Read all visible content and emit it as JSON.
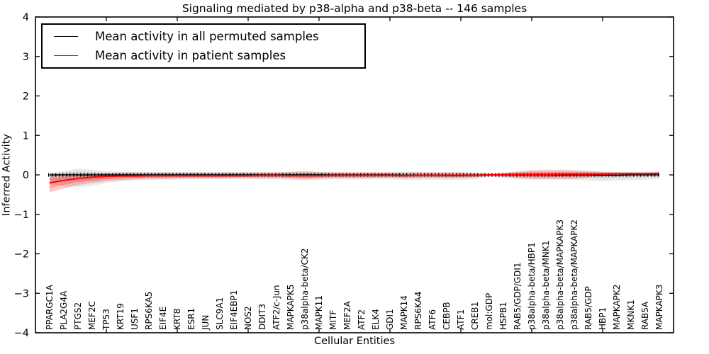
{
  "figure": {
    "background": "#ffffff"
  },
  "chart_data": {
    "type": "line",
    "title": "Signaling mediated by p38-alpha and p38-beta -- 146 samples",
    "xlabel": "Cellular Entities",
    "ylabel": "Inferred Activity",
    "ylim": [
      -4,
      4
    ],
    "xlim": [
      0,
      45
    ],
    "y_ticks": [
      -4,
      -3,
      -2,
      -1,
      0,
      1,
      2,
      3,
      4
    ],
    "x_major_tick_positions": [
      5,
      10,
      15,
      20,
      25,
      30,
      35,
      40
    ],
    "grid": false,
    "legend": {
      "position": "upper left",
      "entries": [
        {
          "label": "Mean activity in all permuted samples",
          "color": "#000000"
        },
        {
          "label": "Mean activity in patient samples",
          "color": "#ff0000"
        }
      ]
    },
    "categories": [
      "PPARGC1A",
      "PLA2G4A",
      "PTGS2",
      "MEF2C",
      "TP53",
      "KRT19",
      "USF1",
      "RPS6KA5",
      "EIF4E",
      "KRT8",
      "ESR1",
      "JUN",
      "SLC9A1",
      "EIF4EBP1",
      "NOS2",
      "DDIT3",
      "ATF2/c-Jun",
      "MAPKAPK5",
      "p38alpha-beta/CK2",
      "MAPK11",
      "MITF",
      "MEF2A",
      "ATF2",
      "ELK4",
      "GDI1",
      "MAPK14",
      "RPS6KA4",
      "ATF6",
      "CEBPB",
      "ATF1",
      "CREB1",
      "mol:GDP",
      "HSPB1",
      "RAB5/GDP/GDI1",
      "p38alpha-beta/HBP1",
      "p38alpha-beta/MNK1",
      "p38alpha-beta/MAPKAPK3",
      "p38alpha-beta/MAPKAPK2",
      "RAB5/GDP",
      "HBP1",
      "MAPKAPK2",
      "MKNK1",
      "RAB5A",
      "MAPKAPK3"
    ],
    "series": [
      {
        "name": "Mean activity in all permuted samples",
        "color": "#000000",
        "values": [
          0,
          0,
          0,
          0,
          0,
          0,
          0,
          0,
          0,
          0,
          0,
          0,
          0,
          0,
          0,
          0,
          0,
          0,
          0,
          0,
          0,
          0,
          0,
          0,
          0,
          -0.01,
          -0.01,
          -0.01,
          -0.02,
          -0.02,
          -0.01,
          0,
          0,
          0,
          0,
          0,
          0,
          0,
          0,
          -0.01,
          -0.01,
          0,
          0,
          0
        ]
      },
      {
        "name": "Mean activity in patient samples",
        "color": "#ff0000",
        "values": [
          -0.2,
          -0.14,
          -0.09,
          -0.06,
          -0.04,
          -0.03,
          -0.03,
          -0.02,
          -0.02,
          -0.02,
          -0.02,
          -0.02,
          -0.02,
          -0.02,
          -0.02,
          -0.01,
          -0.01,
          -0.02,
          -0.02,
          -0.02,
          -0.01,
          -0.01,
          -0.01,
          -0.01,
          -0.01,
          -0.02,
          -0.01,
          -0.01,
          -0.01,
          -0.01,
          -0.01,
          0.0,
          0.0,
          0.01,
          0.01,
          0.01,
          0.02,
          0.02,
          0.02,
          0.02,
          0.03,
          0.03,
          0.03,
          0.04
        ]
      }
    ],
    "bands": [
      {
        "name": "permuted-range",
        "color": "#000000",
        "opacity": 0.085,
        "lo": [
          -0.23,
          -0.27,
          -0.31,
          -0.28,
          -0.2,
          -0.16,
          -0.14,
          -0.13,
          -0.12,
          -0.12,
          -0.11,
          -0.11,
          -0.11,
          -0.11,
          -0.11,
          -0.11,
          -0.11,
          -0.12,
          -0.14,
          -0.12,
          -0.11,
          -0.11,
          -0.11,
          -0.11,
          -0.11,
          -0.13,
          -0.13,
          -0.12,
          -0.13,
          -0.13,
          -0.11,
          -0.06,
          -0.08,
          -0.11,
          -0.12,
          -0.12,
          -0.12,
          -0.12,
          -0.14,
          -0.16,
          -0.14,
          -0.13,
          -0.12,
          -0.11
        ],
        "hi": [
          0.05,
          0.1,
          0.16,
          0.13,
          0.09,
          0.08,
          0.07,
          0.07,
          0.07,
          0.07,
          0.07,
          0.07,
          0.07,
          0.07,
          0.07,
          0.07,
          0.07,
          0.08,
          0.1,
          0.08,
          0.07,
          0.07,
          0.07,
          0.07,
          0.07,
          0.08,
          0.08,
          0.07,
          0.07,
          0.07,
          0.06,
          0.04,
          0.05,
          0.07,
          0.08,
          0.08,
          0.08,
          0.08,
          0.08,
          0.08,
          0.07,
          0.07,
          0.07,
          0.07
        ]
      },
      {
        "name": "patient-range",
        "color": "#ff0000",
        "opacity": 0.22,
        "lo": [
          -0.44,
          -0.34,
          -0.26,
          -0.2,
          -0.16,
          -0.13,
          -0.11,
          -0.1,
          -0.1,
          -0.09,
          -0.09,
          -0.09,
          -0.09,
          -0.08,
          -0.08,
          -0.08,
          -0.08,
          -0.09,
          -0.11,
          -0.09,
          -0.08,
          -0.08,
          -0.08,
          -0.07,
          -0.07,
          -0.08,
          -0.07,
          -0.07,
          -0.07,
          -0.07,
          -0.06,
          -0.03,
          -0.05,
          -0.08,
          -0.1,
          -0.1,
          -0.1,
          -0.1,
          -0.06,
          -0.03,
          -0.02,
          -0.01,
          -0.01,
          0.0
        ],
        "hi": [
          0.01,
          0.03,
          0.04,
          0.05,
          0.05,
          0.06,
          0.06,
          0.06,
          0.06,
          0.06,
          0.06,
          0.06,
          0.06,
          0.06,
          0.06,
          0.06,
          0.06,
          0.07,
          0.08,
          0.07,
          0.06,
          0.06,
          0.06,
          0.06,
          0.06,
          0.06,
          0.06,
          0.06,
          0.06,
          0.06,
          0.05,
          0.03,
          0.05,
          0.09,
          0.12,
          0.13,
          0.13,
          0.12,
          0.1,
          0.08,
          0.07,
          0.07,
          0.07,
          0.08
        ]
      }
    ],
    "zero_line": {
      "style": "dashed",
      "color": "#000000",
      "value": 0
    }
  }
}
